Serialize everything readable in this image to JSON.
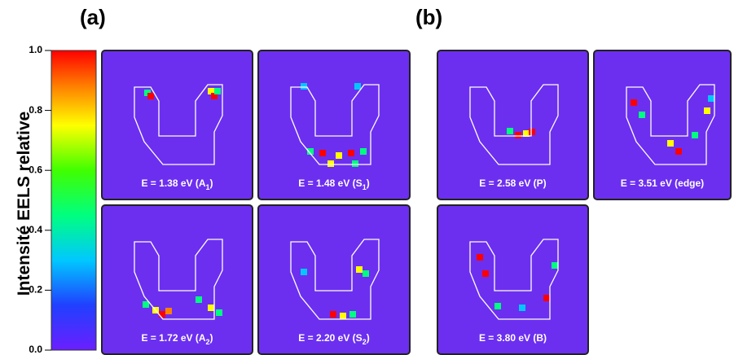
{
  "figure": {
    "panel_labels": [
      "(a)",
      "(b)"
    ],
    "colorbar": {
      "label": "Intensité EELS relative",
      "lim": [
        0,
        1
      ],
      "ticks": [
        {
          "value": 0,
          "label": "0.0"
        },
        {
          "value": 0.2,
          "label": "0.2"
        },
        {
          "value": 0.4,
          "label": "0.4"
        },
        {
          "value": 0.6,
          "label": "0.6"
        },
        {
          "value": 0.8,
          "label": "0.8"
        },
        {
          "value": 1,
          "label": "1.0"
        }
      ]
    },
    "maps": [
      {
        "prefix": "E = 1.38 eV (A",
        "sub": "1",
        "suffix": ")"
      },
      {
        "prefix": "E = 1.48 eV (S",
        "sub": "1",
        "suffix": ")"
      },
      {
        "prefix": "E = 1.72 eV (A",
        "sub": "2",
        "suffix": ")"
      },
      {
        "prefix": "E = 2.20 eV (S",
        "sub": "2",
        "suffix": ")"
      },
      {
        "prefix": "E = 2.58 eV (P)"
      },
      {
        "prefix": "E = 3.51 eV (edge)"
      },
      {
        "prefix": "E = 3.80 eV (B)"
      }
    ]
  }
}
